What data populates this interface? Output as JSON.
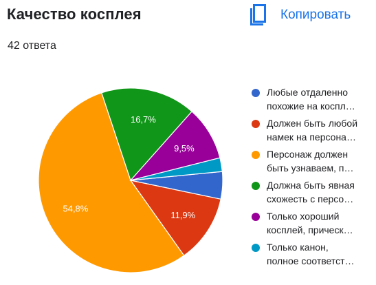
{
  "header": {
    "title": "Качество косплея",
    "responses": "42 ответа",
    "copy_label": "Копировать",
    "copy_icon": "copy-icon"
  },
  "colors": {
    "accent": "#1a73e8"
  },
  "chart_data": {
    "type": "pie",
    "title": "Качество косплея",
    "legend_position": "right",
    "slices": [
      {
        "label": "Любые отдаленно похожие на коспл…",
        "lines": [
          "Любые отдаленно",
          "похожие на коспл…"
        ],
        "value": 4.8,
        "value_label": "",
        "color": "#3366cc"
      },
      {
        "label": "Должен быть любой намек на персона…",
        "lines": [
          "Должен быть любой",
          "намек на персона…"
        ],
        "value": 11.9,
        "value_label": "11,9%",
        "color": "#dc3912"
      },
      {
        "label": "Персонаж должен быть узнаваем, п…",
        "lines": [
          "Персонаж должен",
          "быть узнаваем, п…"
        ],
        "value": 54.8,
        "value_label": "54,8%",
        "color": "#ff9900"
      },
      {
        "label": "Должна быть явная схожесть с персо…",
        "lines": [
          "Должна быть явная",
          "схожесть с персо…"
        ],
        "value": 16.7,
        "value_label": "16,7%",
        "color": "#109618"
      },
      {
        "label": "Только хороший косплей, прическ…",
        "lines": [
          "Только хороший",
          "косплей, прическ…"
        ],
        "value": 9.5,
        "value_label": "9,5%",
        "color": "#990099"
      },
      {
        "label": "Только канон, полное соответст…",
        "lines": [
          "Только канон,",
          "полное соответст…"
        ],
        "value": 2.4,
        "value_label": "",
        "color": "#0099c6"
      }
    ]
  }
}
